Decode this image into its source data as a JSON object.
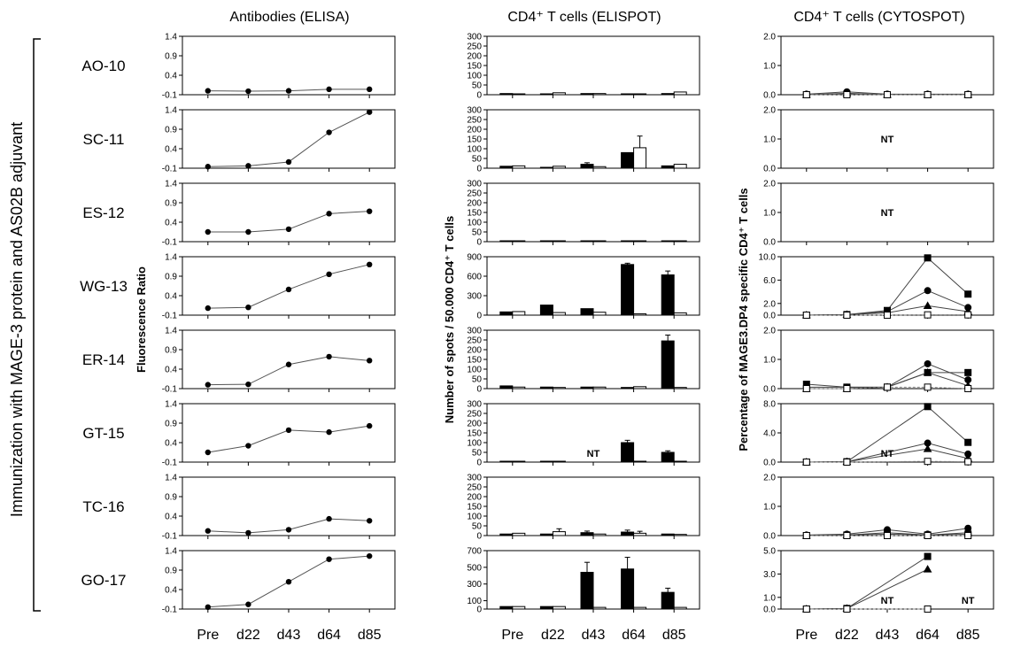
{
  "figure": {
    "side_label": "Immunization with MAGE-3 protein and AS02B adjuvant",
    "timepoints": [
      "Pre",
      "d22",
      "d43",
      "d64",
      "d85"
    ],
    "patients": [
      "AO-10",
      "SC-11",
      "ES-12",
      "WG-13",
      "ER-14",
      "GT-15",
      "TC-16",
      "GO-17"
    ]
  },
  "chart_data": [
    {
      "type": "line",
      "title": "Antibodies (ELISA)",
      "ylabel": "Fluorescence Ratio",
      "xlabel": "",
      "x": [
        "Pre",
        "d22",
        "d43",
        "d64",
        "d85"
      ],
      "ylim": [
        -0.1,
        1.4
      ],
      "ticks": [
        "1.4",
        "0.9",
        "0.4",
        "-0.1"
      ],
      "panels": [
        {
          "patient": "AO-10",
          "values": [
            0.0,
            -0.01,
            0.0,
            0.04,
            0.04
          ]
        },
        {
          "patient": "SC-11",
          "values": [
            -0.06,
            -0.04,
            0.06,
            0.82,
            1.34
          ]
        },
        {
          "patient": "ES-12",
          "values": [
            0.15,
            0.15,
            0.22,
            0.62,
            0.68
          ]
        },
        {
          "patient": "WG-13",
          "values": [
            0.08,
            0.1,
            0.56,
            0.95,
            1.2
          ]
        },
        {
          "patient": "ER-14",
          "values": [
            0.0,
            0.01,
            0.52,
            0.72,
            0.62
          ]
        },
        {
          "patient": "GT-15",
          "values": [
            0.15,
            0.32,
            0.72,
            0.67,
            0.83
          ]
        },
        {
          "patient": "TC-16",
          "values": [
            0.02,
            -0.03,
            0.05,
            0.33,
            0.28
          ]
        },
        {
          "patient": "GO-17",
          "values": [
            -0.05,
            0.02,
            0.6,
            1.18,
            1.26
          ]
        }
      ]
    },
    {
      "type": "bar",
      "title": "CD4⁺ T cells (ELISPOT)",
      "ylabel": "Number of spots / 50.000 CD4⁺ T cells",
      "xlabel": "",
      "categories": [
        "Pre",
        "d22",
        "d43",
        "d64",
        "d85"
      ],
      "series": [
        {
          "fill": "#000000"
        },
        {
          "fill": "#ffffff"
        }
      ],
      "panels": [
        {
          "patient": "AO-10",
          "ylim": [
            0,
            300
          ],
          "ticks": [
            "300",
            "250",
            "200",
            "150",
            "100",
            "50",
            "0"
          ],
          "values": [
            [
              6,
              4
            ],
            [
              4,
              10
            ],
            [
              6,
              6
            ],
            [
              4,
              3
            ],
            [
              6,
              14
            ]
          ],
          "errors": [
            [
              null,
              null
            ],
            [
              null,
              null
            ],
            [
              null,
              null
            ],
            [
              null,
              null
            ],
            [
              null,
              null
            ]
          ]
        },
        {
          "patient": "SC-11",
          "ylim": [
            0,
            300
          ],
          "ticks": [
            "300",
            "250",
            "200",
            "150",
            "100",
            "50",
            "0"
          ],
          "values": [
            [
              10,
              12
            ],
            [
              4,
              10
            ],
            [
              20,
              8
            ],
            [
              80,
              105
            ],
            [
              12,
              20
            ]
          ],
          "errors": [
            [
              null,
              null
            ],
            [
              null,
              null
            ],
            [
              8,
              null
            ],
            [
              null,
              60
            ],
            [
              null,
              null
            ]
          ]
        },
        {
          "patient": "ES-12",
          "ylim": [
            0,
            300
          ],
          "ticks": [
            "300",
            "250",
            "200",
            "150",
            "100",
            "50",
            "0"
          ],
          "values": [
            [
              2,
              2
            ],
            [
              2,
              2
            ],
            [
              2,
              2
            ],
            [
              4,
              2
            ],
            [
              2,
              2
            ]
          ],
          "errors": [
            [
              null,
              null
            ],
            [
              null,
              null
            ],
            [
              null,
              null
            ],
            [
              null,
              null
            ],
            [
              null,
              null
            ]
          ]
        },
        {
          "patient": "WG-13",
          "ylim": [
            0,
            900
          ],
          "ticks": [
            "900",
            "600",
            "300",
            "0"
          ],
          "values": [
            [
              50,
              55
            ],
            [
              155,
              40
            ],
            [
              100,
              45
            ],
            [
              780,
              20
            ],
            [
              620,
              35
            ]
          ],
          "errors": [
            [
              null,
              null
            ],
            [
              null,
              null
            ],
            [
              null,
              null
            ],
            [
              20,
              null
            ],
            [
              60,
              null
            ]
          ]
        },
        {
          "patient": "ER-14",
          "ylim": [
            0,
            300
          ],
          "ticks": [
            "300",
            "250",
            "200",
            "150",
            "100",
            "50",
            "0"
          ],
          "values": [
            [
              14,
              8
            ],
            [
              8,
              6
            ],
            [
              8,
              8
            ],
            [
              6,
              10
            ],
            [
              245,
              6
            ]
          ],
          "errors": [
            [
              null,
              null
            ],
            [
              null,
              null
            ],
            [
              null,
              null
            ],
            [
              null,
              null
            ],
            [
              30,
              null
            ]
          ]
        },
        {
          "patient": "GT-15",
          "ylim": [
            0,
            300
          ],
          "ticks": [
            "300",
            "250",
            "200",
            "150",
            "100",
            "50",
            "0"
          ],
          "values": [
            [
              2,
              3
            ],
            [
              2,
              2
            ],
            [
              null,
              null
            ],
            [
              100,
              4
            ],
            [
              50,
              4
            ]
          ],
          "errors": [
            [
              null,
              null
            ],
            [
              null,
              null
            ],
            [
              null,
              null
            ],
            [
              12,
              null
            ],
            [
              8,
              null
            ]
          ]
        },
        {
          "patient": "TC-16",
          "ylim": [
            0,
            300
          ],
          "ticks": [
            "300",
            "250",
            "200",
            "150",
            "100",
            "50",
            "0"
          ],
          "values": [
            [
              8,
              12
            ],
            [
              8,
              20
            ],
            [
              15,
              8
            ],
            [
              18,
              12
            ],
            [
              8,
              6
            ]
          ],
          "errors": [
            [
              null,
              null
            ],
            [
              null,
              15
            ],
            [
              8,
              null
            ],
            [
              10,
              10
            ],
            [
              null,
              null
            ]
          ]
        },
        {
          "patient": "GO-17",
          "ylim": [
            0,
            700
          ],
          "ticks": [
            "700",
            "500",
            "300",
            "100",
            "0"
          ],
          "values": [
            [
              30,
              30
            ],
            [
              30,
              30
            ],
            [
              440,
              20
            ],
            [
              480,
              20
            ],
            [
              200,
              20
            ]
          ],
          "errors": [
            [
              null,
              null
            ],
            [
              null,
              null
            ],
            [
              120,
              null
            ],
            [
              140,
              null
            ],
            [
              50,
              null
            ]
          ]
        }
      ],
      "annotations": [
        {
          "patient": "GT-15",
          "text": "NT",
          "at": "d43"
        }
      ]
    },
    {
      "type": "line",
      "title": "CD4⁺ T cells (CYTOSPOT)",
      "ylabel": "Percentage of MAGE3.DP4 specific CD4⁺ T cells",
      "xlabel": "",
      "x": [
        "Pre",
        "d22",
        "d43",
        "d64",
        "d85"
      ],
      "panels": [
        {
          "patient": "AO-10",
          "ylim": [
            0,
            2
          ],
          "ticks": [
            "2.0",
            "1.0",
            "0.0"
          ],
          "series": [
            {
              "marker": "square",
              "filled": true,
              "dashed": false,
              "values": [
                0.0,
                0.02,
                0.0,
                0.0,
                0.0
              ]
            },
            {
              "marker": "circle",
              "filled": true,
              "dashed": false,
              "values": [
                0.02,
                0.1,
                0.02,
                0.02,
                0.02
              ]
            },
            {
              "marker": "triangle",
              "filled": true,
              "dashed": false,
              "values": [
                0.0,
                0.05,
                0.0,
                0.0,
                0.0
              ]
            },
            {
              "marker": "square",
              "filled": false,
              "dashed": true,
              "values": [
                0.0,
                0.0,
                0.0,
                0.0,
                0.0
              ]
            }
          ]
        },
        {
          "patient": "SC-11",
          "ylim": [
            0,
            2
          ],
          "ticks": [
            "2.0",
            "1.0",
            "0.0"
          ],
          "note": "NT",
          "series": []
        },
        {
          "patient": "ES-12",
          "ylim": [
            0,
            2
          ],
          "ticks": [
            "2.0",
            "1.0",
            "0.0"
          ],
          "note": "NT",
          "series": []
        },
        {
          "patient": "WG-13",
          "ylim": [
            0,
            10
          ],
          "ticks": [
            "10.0",
            "6.0",
            "2.0",
            "0.0"
          ],
          "series": [
            {
              "marker": "square",
              "filled": true,
              "dashed": false,
              "values": [
                0.0,
                0.1,
                0.8,
                9.8,
                3.6
              ]
            },
            {
              "marker": "circle",
              "filled": true,
              "dashed": false,
              "values": [
                0.0,
                0.1,
                0.6,
                4.2,
                1.3
              ]
            },
            {
              "marker": "triangle",
              "filled": true,
              "dashed": false,
              "values": [
                0.0,
                0.1,
                0.4,
                1.6,
                0.6
              ]
            },
            {
              "marker": "square",
              "filled": false,
              "dashed": true,
              "values": [
                0.0,
                0.0,
                0.0,
                0.05,
                0.05
              ]
            }
          ]
        },
        {
          "patient": "ER-14",
          "ylim": [
            0,
            2
          ],
          "ticks": [
            "2.0",
            "1.0",
            "0.0"
          ],
          "series": [
            {
              "marker": "square",
              "filled": true,
              "dashed": false,
              "values": [
                0.15,
                0.05,
                0.05,
                0.55,
                0.55
              ]
            },
            {
              "marker": "circle",
              "filled": true,
              "dashed": false,
              "values": [
                0.05,
                0.05,
                0.05,
                0.85,
                0.3
              ]
            },
            {
              "marker": "triangle",
              "filled": true,
              "dashed": false,
              "values": [
                0.0,
                0.0,
                0.05,
                0.55,
                0.1
              ]
            },
            {
              "marker": "square",
              "filled": false,
              "dashed": true,
              "values": [
                0.0,
                0.0,
                0.05,
                0.05,
                0.0
              ]
            }
          ]
        },
        {
          "patient": "GT-15",
          "ylim": [
            0,
            8
          ],
          "ticks": [
            "8.0",
            "4.0",
            "0.0"
          ],
          "note": "NT",
          "note_at": "d43",
          "series": [
            {
              "marker": "square",
              "filled": true,
              "dashed": false,
              "values": [
                0.0,
                0.05,
                null,
                7.6,
                2.7
              ]
            },
            {
              "marker": "circle",
              "filled": true,
              "dashed": false,
              "values": [
                0.0,
                0.05,
                null,
                2.6,
                1.1
              ]
            },
            {
              "marker": "triangle",
              "filled": true,
              "dashed": false,
              "values": [
                0.0,
                0.05,
                null,
                1.8,
                0.5
              ]
            },
            {
              "marker": "square",
              "filled": false,
              "dashed": true,
              "values": [
                0.0,
                0.0,
                null,
                0.1,
                0.05
              ]
            }
          ]
        },
        {
          "patient": "TC-16",
          "ylim": [
            0,
            2
          ],
          "ticks": [
            "2.0",
            "1.0",
            "0.0"
          ],
          "series": [
            {
              "marker": "square",
              "filled": true,
              "dashed": false,
              "values": [
                0.0,
                0.02,
                0.05,
                0.02,
                0.05
              ]
            },
            {
              "marker": "circle",
              "filled": true,
              "dashed": false,
              "values": [
                0.02,
                0.05,
                0.2,
                0.05,
                0.25
              ]
            },
            {
              "marker": "triangle",
              "filled": true,
              "dashed": false,
              "values": [
                0.0,
                0.02,
                0.1,
                0.02,
                0.1
              ]
            },
            {
              "marker": "square",
              "filled": false,
              "dashed": true,
              "values": [
                0.0,
                0.0,
                0.0,
                0.0,
                0.0
              ]
            }
          ]
        },
        {
          "patient": "GO-17",
          "ylim": [
            0,
            5
          ],
          "ticks": [
            "5.0",
            "3.0",
            "1.0",
            "0.0"
          ],
          "note": "NT",
          "note_at": [
            "d43",
            "d85"
          ],
          "series": [
            {
              "marker": "square",
              "filled": true,
              "dashed": false,
              "values": [
                0.0,
                0.05,
                null,
                4.5,
                null
              ]
            },
            {
              "marker": "triangle",
              "filled": true,
              "dashed": false,
              "values": [
                0.0,
                0.05,
                null,
                3.4,
                null
              ]
            },
            {
              "marker": "square",
              "filled": false,
              "dashed": true,
              "values": [
                0.0,
                0.0,
                null,
                0.0,
                null
              ]
            }
          ]
        }
      ]
    }
  ]
}
